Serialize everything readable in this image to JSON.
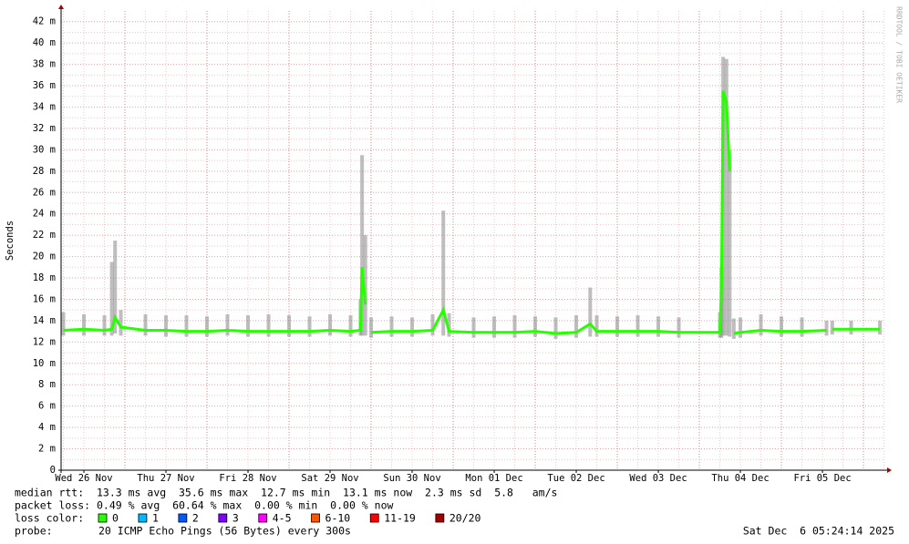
{
  "chart_data": {
    "type": "line",
    "y_label": "Seconds",
    "watermark": "RRDTOOL / TOBI OETIKER",
    "xlim": [
      0.222,
      10.255
    ],
    "xticks": [
      {
        "value": 0.5,
        "label": "Wed 26 Nov"
      },
      {
        "value": 1.5,
        "label": "Thu 27 Nov"
      },
      {
        "value": 2.5,
        "label": "Fri 28 Nov"
      },
      {
        "value": 3.5,
        "label": "Sat 29 Nov"
      },
      {
        "value": 4.5,
        "label": "Sun 30 Nov"
      },
      {
        "value": 5.5,
        "label": "Mon 01 Dec"
      },
      {
        "value": 6.5,
        "label": "Tue 02 Dec"
      },
      {
        "value": 7.5,
        "label": "Wed 03 Dec"
      },
      {
        "value": 8.5,
        "label": "Thu 04 Dec"
      },
      {
        "value": 9.5,
        "label": "Fri 05 Dec"
      }
    ],
    "ylim": [
      0,
      43
    ],
    "yticks": [
      0,
      {
        "value": 2,
        "label": "2 m"
      },
      {
        "value": 4,
        "label": "4 m"
      },
      {
        "value": 6,
        "label": "6 m"
      },
      {
        "value": 8,
        "label": "8 m"
      },
      {
        "value": 10,
        "label": "10 m"
      },
      {
        "value": 12,
        "label": "12 m"
      },
      {
        "value": 14,
        "label": "14 m"
      },
      {
        "value": 16,
        "label": "16 m"
      },
      {
        "value": 18,
        "label": "18 m"
      },
      {
        "value": 20,
        "label": "20 m"
      },
      {
        "value": 22,
        "label": "22 m"
      },
      {
        "value": 24,
        "label": "24 m"
      },
      {
        "value": 26,
        "label": "26 m"
      },
      {
        "value": 28,
        "label": "28 m"
      },
      {
        "value": 30,
        "label": "30 m"
      },
      {
        "value": 32,
        "label": "32 m"
      },
      {
        "value": 34,
        "label": "34 m"
      },
      {
        "value": 36,
        "label": "36 m"
      },
      {
        "value": 38,
        "label": "38 m"
      },
      {
        "value": 40,
        "label": "40 m"
      },
      {
        "value": 42,
        "label": "42 m"
      }
    ],
    "grid": true,
    "x": [
      0.25,
      0.5,
      0.75,
      0.84,
      0.88,
      0.95,
      1.25,
      1.5,
      1.75,
      2.0,
      2.25,
      2.5,
      2.75,
      3.0,
      3.25,
      3.5,
      3.75,
      3.87,
      3.89,
      3.93,
      3.97,
      4.0,
      4.25,
      4.5,
      4.75,
      4.88,
      4.95,
      5.25,
      5.5,
      5.75,
      6.0,
      6.25,
      6.5,
      6.67,
      6.75,
      7.0,
      7.25,
      7.5,
      7.75,
      8.25,
      8.27,
      8.29,
      8.33,
      8.37,
      8.39,
      8.42,
      8.5,
      8.75,
      9.0,
      9.25,
      9.55,
      9.58,
      9.62,
      9.85,
      10.2
    ],
    "series": [
      {
        "color": "#26ff00",
        "values": [
          13.1,
          13.2,
          13.1,
          13.2,
          14.3,
          13.4,
          13.1,
          13.1,
          13.0,
          13.0,
          13.1,
          13.0,
          13.0,
          13.0,
          13.0,
          13.1,
          13.0,
          13.1,
          19.0,
          15.5,
          null,
          12.9,
          13.0,
          13.0,
          13.1,
          15.0,
          13.0,
          12.9,
          12.9,
          12.9,
          13.0,
          12.8,
          12.9,
          13.7,
          13.0,
          13.0,
          13.0,
          13.0,
          12.9,
          12.9,
          17.2,
          35.5,
          34.5,
          28.0,
          null,
          12.8,
          12.9,
          13.1,
          13.0,
          13.0,
          13.1,
          null,
          13.2,
          13.2,
          13.2
        ]
      }
    ],
    "smoke": {
      "color": "#888888",
      "upper": [
        14.8,
        14.6,
        14.5,
        19.5,
        21.5,
        15.0,
        14.6,
        14.5,
        14.5,
        14.4,
        14.6,
        14.5,
        14.6,
        14.5,
        14.4,
        14.6,
        14.5,
        16.0,
        29.5,
        22.0,
        null,
        14.3,
        14.4,
        14.3,
        14.6,
        24.3,
        14.7,
        14.3,
        14.4,
        14.5,
        14.4,
        14.3,
        14.5,
        17.1,
        14.5,
        14.4,
        14.5,
        14.4,
        14.3,
        14.8,
        19.0,
        38.7,
        38.5,
        30.0,
        null,
        14.2,
        14.3,
        14.6,
        14.4,
        14.3,
        14.0,
        null,
        14.0,
        14.0,
        14.0
      ],
      "lower": [
        12.6,
        12.6,
        12.6,
        12.6,
        12.8,
        12.6,
        12.6,
        12.5,
        12.5,
        12.5,
        12.6,
        12.5,
        12.5,
        12.5,
        12.5,
        12.6,
        12.5,
        12.6,
        12.6,
        12.6,
        null,
        12.4,
        12.5,
        12.5,
        12.6,
        12.6,
        12.5,
        12.4,
        12.4,
        12.4,
        12.5,
        12.3,
        12.4,
        12.5,
        12.5,
        12.5,
        12.5,
        12.5,
        12.4,
        12.4,
        12.4,
        12.6,
        12.6,
        12.5,
        null,
        12.3,
        12.4,
        12.6,
        12.5,
        12.5,
        12.6,
        null,
        12.7,
        12.7,
        12.7
      ]
    },
    "stats": [
      "median rtt:  13.3 ms avg  35.6 ms max  12.7 ms min  13.1 ms now  2.3 ms sd  5.8   am/s",
      "packet loss: 0.49 % avg  60.64 % max  0.00 % min  0.00 % now"
    ],
    "loss_label": "loss color:",
    "loss_legend": [
      {
        "label": "0",
        "color": "#26ff00"
      },
      {
        "label": "1",
        "color": "#00b8ff"
      },
      {
        "label": "2",
        "color": "#0059ff"
      },
      {
        "label": "3",
        "color": "#7e00ff"
      },
      {
        "label": "4-5",
        "color": "#ff00ff"
      },
      {
        "label": "6-10",
        "color": "#ff5500"
      },
      {
        "label": "11-19",
        "color": "#ff0000"
      },
      {
        "label": "20/20",
        "color": "#a10000"
      }
    ],
    "probe_label": "probe:",
    "probe": "20 ICMP Echo Pings (56 Bytes) every 300s",
    "timestamp": "Sat Dec  6 05:24:14 2025"
  }
}
